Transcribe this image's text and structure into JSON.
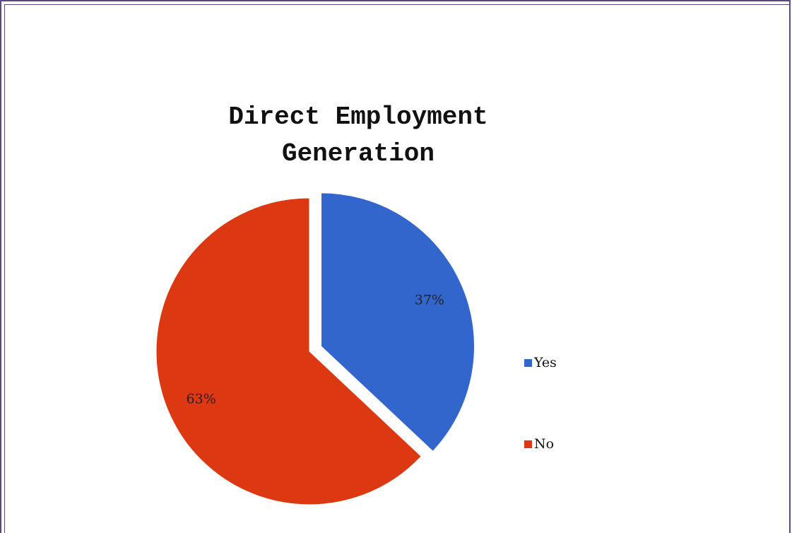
{
  "chart_data": {
    "type": "pie",
    "title": [
      "Direct Employment",
      "Generation"
    ],
    "slices": [
      {
        "label": "Yes",
        "value": 37,
        "display": "37%",
        "color": "#3366cc",
        "exploded": true
      },
      {
        "label": "No",
        "value": 63,
        "display": "63%",
        "color": "#dc3912",
        "exploded": false
      }
    ],
    "legend_position": "right"
  }
}
